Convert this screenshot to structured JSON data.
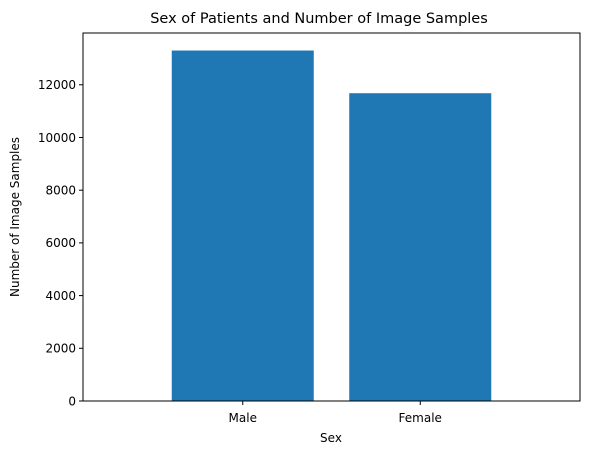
{
  "chart_data": {
    "type": "bar",
    "title": "Sex of Patients and Number of Image Samples",
    "xlabel": "Sex",
    "ylabel": "Number of Image Samples",
    "categories": [
      "Male",
      "Female"
    ],
    "values": [
      13300,
      11680
    ],
    "ylim": [
      0,
      13965
    ],
    "yticks": [
      0,
      2000,
      4000,
      6000,
      8000,
      10000,
      12000
    ],
    "bar_color": "#1f77b4",
    "grid": false,
    "legend": "none"
  }
}
